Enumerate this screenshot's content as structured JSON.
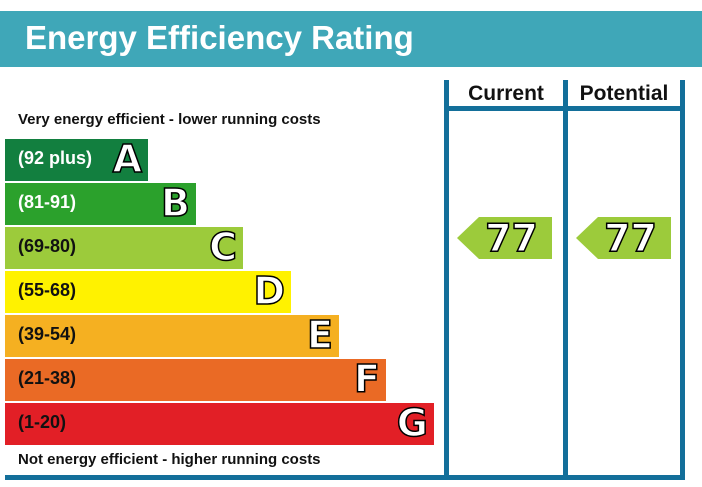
{
  "header": {
    "title": "Energy Efficiency Rating"
  },
  "columns": {
    "current": "Current",
    "potential": "Potential"
  },
  "notes": {
    "top": "Very energy efficient - lower running costs",
    "bottom": "Not energy efficient - higher running costs"
  },
  "chart_data": {
    "type": "bar",
    "bands": [
      {
        "letter": "A",
        "range": "(92 plus)",
        "color": "#127f3f",
        "text_color": "#ffffff"
      },
      {
        "letter": "B",
        "range": "(81-91)",
        "color": "#2ba12c",
        "text_color": "#ffffff"
      },
      {
        "letter": "C",
        "range": "(69-80)",
        "color": "#9ccb3b",
        "text_color": "#111111"
      },
      {
        "letter": "D",
        "range": "(55-68)",
        "color": "#fff200",
        "text_color": "#111111"
      },
      {
        "letter": "E",
        "range": "(39-54)",
        "color": "#f5b021",
        "text_color": "#111111"
      },
      {
        "letter": "F",
        "range": "(21-38)",
        "color": "#ea6a25",
        "text_color": "#111111"
      },
      {
        "letter": "G",
        "range": "(1-20)",
        "color": "#e21f26",
        "text_color": "#111111"
      }
    ],
    "current": {
      "value": "77",
      "band": "C",
      "color": "#9ccb3b"
    },
    "potential": {
      "value": "77",
      "band": "C",
      "color": "#9ccb3b"
    }
  }
}
